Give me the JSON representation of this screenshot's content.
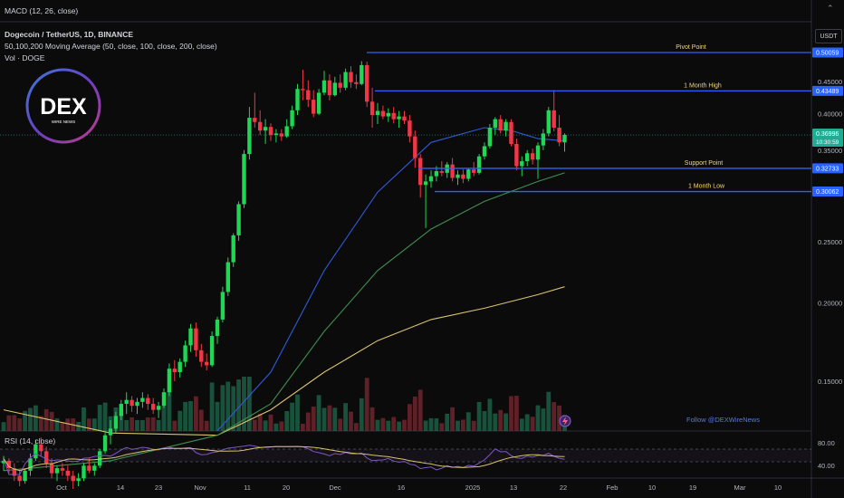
{
  "header": {
    "macd_label": "MACD (12, 26, close)",
    "symbol_label": "Dogecoin / TetherUS, 1D, BINANCE",
    "ma_label": "50,100,200 Moving Average (50, close, 100, close, 200, close)",
    "vol_label": "Vol · DOGE",
    "currency": "USDT"
  },
  "logo": {
    "main": "DEX",
    "sub": "WIRE NEWS"
  },
  "watermark": "Follow @DEXWireNews",
  "rsi_label": "RSI (14, close)",
  "price_axis": {
    "ticks": [
      "0.45000",
      "0.40000",
      "0.35000",
      "0.25000",
      "0.20000",
      "0.15000"
    ],
    "tags": [
      {
        "text": "0.50059",
        "color": "#2962ff"
      },
      {
        "text": "0.43489",
        "color": "#2962ff"
      },
      {
        "text": "0.36996",
        "color": "#22ab94",
        "sub": "10:30:59"
      },
      {
        "text": "0.32733",
        "color": "#2962ff"
      },
      {
        "text": "0.30062",
        "color": "#2962ff"
      }
    ]
  },
  "rsi_axis": {
    "ticks": [
      "80.00",
      "40.00"
    ]
  },
  "levels": [
    {
      "label": "Pivot Point"
    },
    {
      "label": "1 Month High"
    },
    {
      "label": "Support Point"
    },
    {
      "label": "1 Month Low"
    }
  ],
  "time_axis": [
    "Oct",
    "14",
    "23",
    "Nov",
    "11",
    "20",
    "Dec",
    "16",
    "2025",
    "13",
    "22",
    "Feb",
    "10",
    "19",
    "Mar",
    "10"
  ],
  "chart_data": {
    "type": "candlestick",
    "title": "Dogecoin / TetherUS, 1D, BINANCE",
    "price_range": [
      0.11,
      0.52
    ],
    "rsi_range": [
      30,
      85
    ],
    "levels": [
      {
        "name": "Pivot Point",
        "value": 0.50059
      },
      {
        "name": "1 Month High",
        "value": 0.43489
      },
      {
        "name": "Support Point",
        "value": 0.32733
      },
      {
        "name": "1 Month Low",
        "value": 0.30062
      }
    ],
    "last_price": 0.36996,
    "ohlc": [
      [
        0.111,
        0.114,
        0.108,
        0.112
      ],
      [
        0.112,
        0.113,
        0.107,
        0.109
      ],
      [
        0.109,
        0.111,
        0.104,
        0.106
      ],
      [
        0.106,
        0.108,
        0.102,
        0.104
      ],
      [
        0.104,
        0.109,
        0.103,
        0.108
      ],
      [
        0.108,
        0.115,
        0.106,
        0.113
      ],
      [
        0.113,
        0.121,
        0.112,
        0.119
      ],
      [
        0.119,
        0.122,
        0.114,
        0.116
      ],
      [
        0.116,
        0.118,
        0.109,
        0.111
      ],
      [
        0.111,
        0.113,
        0.105,
        0.107
      ],
      [
        0.107,
        0.11,
        0.104,
        0.109
      ],
      [
        0.109,
        0.111,
        0.106,
        0.108
      ],
      [
        0.108,
        0.11,
        0.104,
        0.106
      ],
      [
        0.106,
        0.108,
        0.101,
        0.104
      ],
      [
        0.104,
        0.107,
        0.102,
        0.105
      ],
      [
        0.105,
        0.111,
        0.104,
        0.11
      ],
      [
        0.11,
        0.113,
        0.107,
        0.108
      ],
      [
        0.108,
        0.111,
        0.106,
        0.11
      ],
      [
        0.11,
        0.117,
        0.109,
        0.116
      ],
      [
        0.116,
        0.125,
        0.115,
        0.123
      ],
      [
        0.123,
        0.13,
        0.119,
        0.126
      ],
      [
        0.126,
        0.134,
        0.124,
        0.132
      ],
      [
        0.132,
        0.14,
        0.13,
        0.138
      ],
      [
        0.138,
        0.144,
        0.133,
        0.14
      ],
      [
        0.14,
        0.142,
        0.134,
        0.137
      ],
      [
        0.137,
        0.141,
        0.133,
        0.139
      ],
      [
        0.139,
        0.144,
        0.136,
        0.141
      ],
      [
        0.141,
        0.143,
        0.135,
        0.138
      ],
      [
        0.138,
        0.141,
        0.133,
        0.135
      ],
      [
        0.135,
        0.139,
        0.131,
        0.137
      ],
      [
        0.137,
        0.146,
        0.136,
        0.144
      ],
      [
        0.144,
        0.16,
        0.142,
        0.157
      ],
      [
        0.157,
        0.162,
        0.15,
        0.155
      ],
      [
        0.155,
        0.163,
        0.152,
        0.161
      ],
      [
        0.161,
        0.174,
        0.158,
        0.171
      ],
      [
        0.171,
        0.185,
        0.167,
        0.182
      ],
      [
        0.182,
        0.186,
        0.164,
        0.168
      ],
      [
        0.168,
        0.172,
        0.158,
        0.161
      ],
      [
        0.161,
        0.166,
        0.156,
        0.159
      ],
      [
        0.159,
        0.18,
        0.158,
        0.177
      ],
      [
        0.177,
        0.19,
        0.172,
        0.188
      ],
      [
        0.188,
        0.212,
        0.186,
        0.208
      ],
      [
        0.208,
        0.236,
        0.205,
        0.232
      ],
      [
        0.232,
        0.258,
        0.228,
        0.256
      ],
      [
        0.256,
        0.29,
        0.251,
        0.287
      ],
      [
        0.287,
        0.35,
        0.283,
        0.345
      ],
      [
        0.345,
        0.41,
        0.338,
        0.394
      ],
      [
        0.394,
        0.432,
        0.38,
        0.388
      ],
      [
        0.388,
        0.405,
        0.37,
        0.376
      ],
      [
        0.376,
        0.392,
        0.358,
        0.381
      ],
      [
        0.381,
        0.386,
        0.362,
        0.37
      ],
      [
        0.37,
        0.378,
        0.36,
        0.372
      ],
      [
        0.372,
        0.378,
        0.362,
        0.368
      ],
      [
        0.368,
        0.392,
        0.366,
        0.382
      ],
      [
        0.382,
        0.412,
        0.378,
        0.405
      ],
      [
        0.405,
        0.446,
        0.398,
        0.438
      ],
      [
        0.438,
        0.47,
        0.42,
        0.436
      ],
      [
        0.436,
        0.452,
        0.41,
        0.421
      ],
      [
        0.421,
        0.436,
        0.395,
        0.4
      ],
      [
        0.4,
        0.438,
        0.398,
        0.432
      ],
      [
        0.432,
        0.468,
        0.428,
        0.452
      ],
      [
        0.452,
        0.462,
        0.42,
        0.428
      ],
      [
        0.428,
        0.458,
        0.426,
        0.448
      ],
      [
        0.448,
        0.462,
        0.432,
        0.44
      ],
      [
        0.44,
        0.472,
        0.436,
        0.466
      ],
      [
        0.466,
        0.476,
        0.44,
        0.449
      ],
      [
        0.449,
        0.462,
        0.438,
        0.446
      ],
      [
        0.446,
        0.485,
        0.444,
        0.478
      ],
      [
        0.478,
        0.484,
        0.41,
        0.418
      ],
      [
        0.418,
        0.44,
        0.38,
        0.398
      ],
      [
        0.398,
        0.416,
        0.385,
        0.404
      ],
      [
        0.404,
        0.412,
        0.392,
        0.396
      ],
      [
        0.396,
        0.408,
        0.388,
        0.401
      ],
      [
        0.401,
        0.41,
        0.386,
        0.392
      ],
      [
        0.392,
        0.404,
        0.38,
        0.396
      ],
      [
        0.396,
        0.404,
        0.385,
        0.39
      ],
      [
        0.39,
        0.398,
        0.36,
        0.368
      ],
      [
        0.368,
        0.376,
        0.328,
        0.34
      ],
      [
        0.34,
        0.345,
        0.294,
        0.308
      ],
      [
        0.308,
        0.32,
        0.263,
        0.312
      ],
      [
        0.312,
        0.325,
        0.305,
        0.318
      ],
      [
        0.318,
        0.33,
        0.312,
        0.324
      ],
      [
        0.324,
        0.336,
        0.318,
        0.322
      ],
      [
        0.322,
        0.335,
        0.316,
        0.332
      ],
      [
        0.332,
        0.34,
        0.312,
        0.316
      ],
      [
        0.316,
        0.325,
        0.308,
        0.32
      ],
      [
        0.32,
        0.326,
        0.31,
        0.315
      ],
      [
        0.315,
        0.328,
        0.312,
        0.326
      ],
      [
        0.326,
        0.335,
        0.318,
        0.322
      ],
      [
        0.322,
        0.345,
        0.32,
        0.342
      ],
      [
        0.342,
        0.36,
        0.338,
        0.355
      ],
      [
        0.355,
        0.385,
        0.352,
        0.38
      ],
      [
        0.38,
        0.395,
        0.37,
        0.392
      ],
      [
        0.392,
        0.398,
        0.372,
        0.376
      ],
      [
        0.376,
        0.392,
        0.368,
        0.388
      ],
      [
        0.388,
        0.392,
        0.355,
        0.358
      ],
      [
        0.358,
        0.365,
        0.325,
        0.33
      ],
      [
        0.33,
        0.342,
        0.318,
        0.336
      ],
      [
        0.336,
        0.35,
        0.33,
        0.346
      ],
      [
        0.346,
        0.352,
        0.332,
        0.338
      ],
      [
        0.338,
        0.36,
        0.315,
        0.356
      ],
      [
        0.356,
        0.378,
        0.35,
        0.372
      ],
      [
        0.372,
        0.41,
        0.368,
        0.405
      ],
      [
        0.405,
        0.436,
        0.375,
        0.38
      ],
      [
        0.38,
        0.398,
        0.355,
        0.36
      ],
      [
        0.36,
        0.372,
        0.348,
        0.37
      ]
    ],
    "ma50": [
      [
        40,
        0.125
      ],
      [
        50,
        0.155
      ],
      [
        60,
        0.225
      ],
      [
        70,
        0.3
      ],
      [
        80,
        0.36
      ],
      [
        90,
        0.38
      ],
      [
        95,
        0.376
      ],
      [
        100,
        0.365
      ],
      [
        105,
        0.362
      ]
    ],
    "ma100": [
      [
        0,
        0.108
      ],
      [
        20,
        0.112
      ],
      [
        40,
        0.123
      ],
      [
        50,
        0.138
      ],
      [
        60,
        0.18
      ],
      [
        70,
        0.225
      ],
      [
        80,
        0.262
      ],
      [
        90,
        0.29
      ],
      [
        100,
        0.312
      ],
      [
        105,
        0.322
      ]
    ],
    "ma200": [
      [
        0,
        0.135
      ],
      [
        20,
        0.124
      ],
      [
        40,
        0.123
      ],
      [
        50,
        0.135
      ],
      [
        60,
        0.155
      ],
      [
        70,
        0.174
      ],
      [
        80,
        0.188
      ],
      [
        90,
        0.196
      ],
      [
        100,
        0.206
      ],
      [
        105,
        0.212
      ]
    ]
  }
}
